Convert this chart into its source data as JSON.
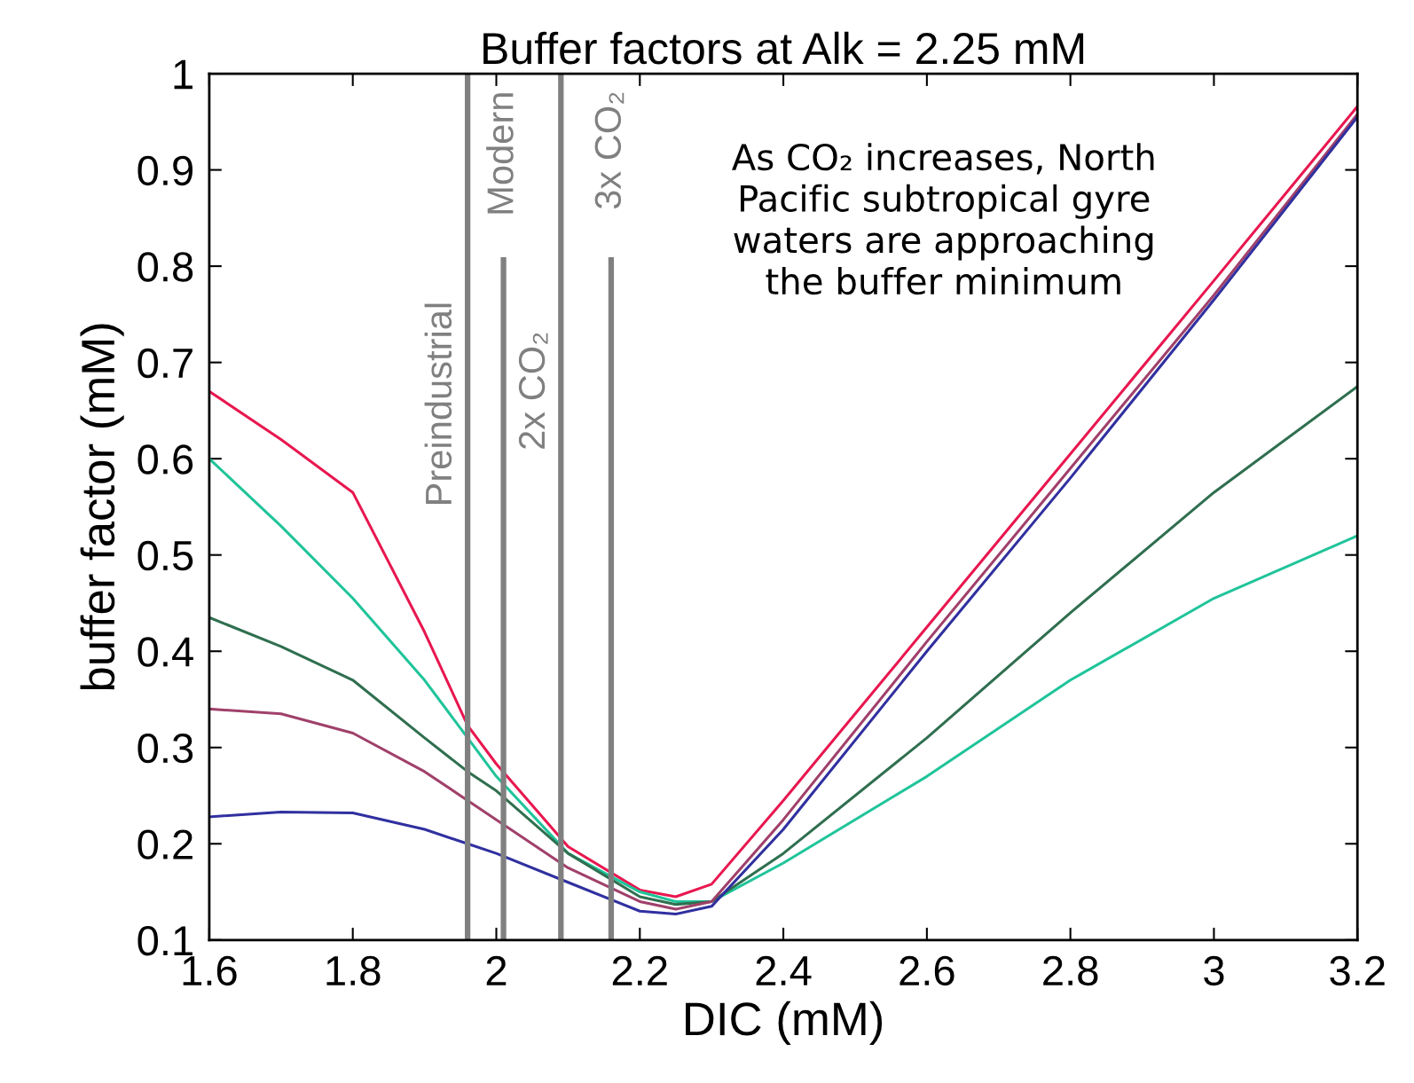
{
  "chart_data": {
    "type": "line",
    "title": "Buffer factors at Alk = 2.25 mM",
    "xlabel": "DIC (mM)",
    "ylabel": "buffer factor (mM)",
    "x": [
      1.6,
      1.7,
      1.8,
      1.9,
      1.96,
      2.0,
      2.1,
      2.2,
      2.25,
      2.3,
      2.4,
      2.6,
      2.8,
      3.0,
      3.2
    ],
    "series": [
      {
        "color": "#e8174f",
        "values": [
          0.67,
          0.62,
          0.565,
          0.42,
          0.323,
          0.283,
          0.197,
          0.152,
          0.145,
          0.158,
          0.245,
          0.425,
          0.605,
          0.785,
          0.966
        ]
      },
      {
        "color": "#20c49a",
        "values": [
          0.6,
          0.53,
          0.455,
          0.37,
          0.31,
          0.27,
          0.19,
          0.15,
          0.14,
          0.14,
          0.18,
          0.27,
          0.37,
          0.455,
          0.52
        ]
      },
      {
        "color": "#2f6f4f",
        "values": [
          0.435,
          0.405,
          0.37,
          0.31,
          0.275,
          0.255,
          0.19,
          0.145,
          0.137,
          0.14,
          0.19,
          0.31,
          0.44,
          0.565,
          0.675
        ]
      },
      {
        "color": "#a0406a",
        "values": [
          0.34,
          0.335,
          0.315,
          0.275,
          0.245,
          0.225,
          0.175,
          0.14,
          0.132,
          0.14,
          0.225,
          0.41,
          0.59,
          0.77,
          0.958
        ]
      },
      {
        "color": "#3030a0",
        "values": [
          0.228,
          0.233,
          0.232,
          0.215,
          0.2,
          0.19,
          0.16,
          0.13,
          0.127,
          0.135,
          0.215,
          0.4,
          0.58,
          0.765,
          0.955
        ]
      }
    ],
    "xlim": [
      1.6,
      3.2
    ],
    "xticks": [
      1.6,
      1.8,
      2,
      2.2,
      2.4,
      2.6,
      2.8,
      3,
      3.2
    ],
    "ylim": [
      0.1,
      1
    ],
    "yticks": [
      0.1,
      0.2,
      0.3,
      0.4,
      0.5,
      0.6,
      0.7,
      0.8,
      0.9,
      1
    ],
    "ref_lines": [
      {
        "axis": "x",
        "value": 1.96,
        "label": "Preindustrial",
        "color": "#808080"
      },
      {
        "axis": "x",
        "value": 2.01,
        "label": "Modern",
        "color": "#808080"
      },
      {
        "axis": "x",
        "value": 2.09,
        "label": "2x CO₂",
        "color": "#808080"
      },
      {
        "axis": "x",
        "value": 2.16,
        "label": "3x CO₂",
        "color": "#808080"
      }
    ],
    "annotations": [
      "As CO₂ increases, North\nPacific subtropical gyre\nwaters are approaching\nthe buffer minimum"
    ],
    "grid": false,
    "legend": false,
    "marker": "none",
    "line_style": "solid"
  }
}
